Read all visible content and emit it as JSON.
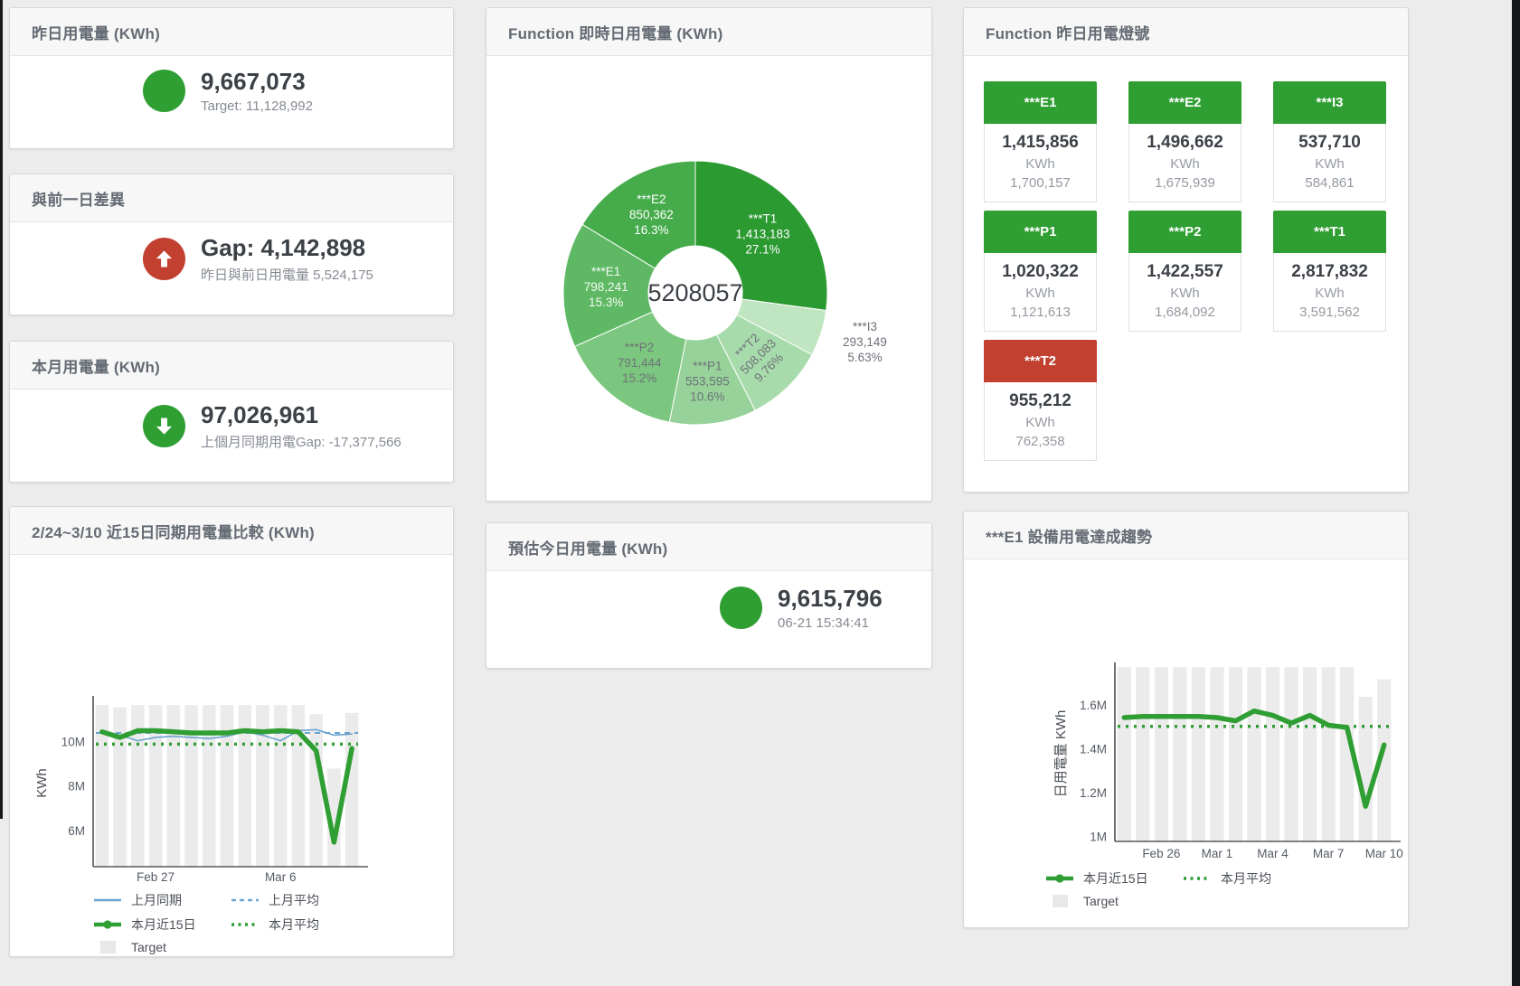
{
  "colors": {
    "green": "#2f9e33",
    "red": "#c1402f",
    "blue": "#6ba3cf",
    "target_bar": "#ebebeb",
    "title": "#656b74",
    "value": "#3c4147",
    "muted": "#868b93",
    "axis": "#565c66"
  },
  "panels": {
    "yesterday": {
      "title": "昨日用電量 (KWh)",
      "value": "9,667,073",
      "subtitle": "Target: 11,128,992",
      "indicator": "green-circle"
    },
    "day_gap": {
      "title": "與前一日差異",
      "value": "Gap: 4,142,898",
      "subtitle": "昨日與前日用電量 5,524,175",
      "indicator": "red-up-arrow"
    },
    "month": {
      "title": "本月用電量 (KWh)",
      "value": "97,026,961",
      "subtitle": "上個月同期用電Gap: -17,377,566",
      "indicator": "green-down-arrow"
    },
    "realtime_donut": {
      "title": "Function 即時日用電量 (KWh)"
    },
    "today_estimate": {
      "title": "預估今日用電量 (KWh)",
      "value": "9,615,796",
      "subtitle": "06-21 15:34:41",
      "indicator": "green-circle"
    },
    "lights": {
      "title": "Function 昨日用電燈號",
      "unit": "KWh",
      "tiles": [
        {
          "name": "***E1",
          "value": "1,415,856",
          "target": "1,700,157",
          "status": "green"
        },
        {
          "name": "***E2",
          "value": "1,496,662",
          "target": "1,675,939",
          "status": "green"
        },
        {
          "name": "***I3",
          "value": "537,710",
          "target": "584,861",
          "status": "green"
        },
        {
          "name": "***P1",
          "value": "1,020,322",
          "target": "1,121,613",
          "status": "green"
        },
        {
          "name": "***P2",
          "value": "1,422,557",
          "target": "1,684,092",
          "status": "green"
        },
        {
          "name": "***T1",
          "value": "2,817,832",
          "target": "3,591,562",
          "status": "green"
        },
        {
          "name": "***T2",
          "value": "955,212",
          "target": "762,358",
          "status": "red"
        }
      ]
    },
    "compare": {
      "title": "2/24~3/10 近15日同期用電量比較 (KWh)"
    },
    "trend": {
      "title": "***E1 設備用電達成趨勢"
    }
  },
  "chart_data": [
    {
      "id": "realtime_donut",
      "type": "pie",
      "title": "Function 即時日用電量 (KWh)",
      "center_label": "5208057",
      "total": 5208057,
      "slices": [
        {
          "name": "***T1",
          "value": 1413183,
          "label_value": "1,413,183",
          "pct": "27.1%",
          "color": "#2b9a31",
          "text": "#ffffff"
        },
        {
          "name": "***I3",
          "value": 293149,
          "label_value": "293,149",
          "pct": "5.63%",
          "color": "#bfe5c1",
          "text": "#6d7278",
          "placement": "outside"
        },
        {
          "name": "***T2",
          "value": 508083,
          "label_value": "508,083",
          "pct": "9.76%",
          "color": "#a8dbab",
          "text": "#6d7278",
          "rotate": true
        },
        {
          "name": "***P1",
          "value": 553595,
          "label_value": "553,595",
          "pct": "10.6%",
          "color": "#97d29a",
          "text": "#6d7278"
        },
        {
          "name": "***P2",
          "value": 791444,
          "label_value": "791,444",
          "pct": "15.2%",
          "color": "#7cc77f",
          "text": "#6d7278"
        },
        {
          "name": "***E1",
          "value": 798241,
          "label_value": "798,241",
          "pct": "15.3%",
          "color": "#5fb964",
          "text": "#f4faf4"
        },
        {
          "name": "***E2",
          "value": 850362,
          "label_value": "850,362",
          "pct": "16.3%",
          "color": "#46ab4b",
          "text": "#ffffff"
        }
      ]
    },
    {
      "id": "compare",
      "type": "line",
      "title": "2/24~3/10 近15日同期用電量比較 (KWh)",
      "ylabel": "KWh",
      "ylim": [
        4400000,
        11900000
      ],
      "yticks": [
        {
          "v": 6000000,
          "label": "6M"
        },
        {
          "v": 8000000,
          "label": "8M"
        },
        {
          "v": 10000000,
          "label": "10M"
        }
      ],
      "xticks": [
        {
          "i": 3,
          "label": "Feb 27"
        },
        {
          "i": 10,
          "label": "Mar 6"
        }
      ],
      "target_bars": {
        "name": "Target",
        "color": "#ebebeb",
        "values": [
          11650000,
          11550000,
          11650000,
          11650000,
          11650000,
          11650000,
          11650000,
          11650000,
          11650000,
          11650000,
          11650000,
          11650000,
          11250000,
          8800000,
          11300000
        ]
      },
      "series": [
        {
          "name": "上月同期",
          "color": "#6ba3cf",
          "width": 1.6,
          "dash": "",
          "values": [
            10500000,
            10300000,
            10050000,
            10200000,
            10250000,
            10200000,
            10150000,
            10250000,
            10450000,
            10300000,
            10050000,
            10500000,
            10550000,
            10300000,
            10350000
          ]
        },
        {
          "name": "上月平均",
          "color": "#6ba3cf",
          "width": 2,
          "dash": "6 5",
          "const": 10400000
        },
        {
          "name": "本月平均",
          "color": "#2f9e33",
          "width": 3.5,
          "dash": "3 6",
          "const": 9900000
        },
        {
          "name": "本月近15日",
          "color": "#2f9e33",
          "width": 5.5,
          "dash": "",
          "values": [
            10450000,
            10200000,
            10500000,
            10500000,
            10450000,
            10400000,
            10400000,
            10400000,
            10500000,
            10450000,
            10500000,
            10450000,
            9600000,
            5500000,
            9700000
          ]
        }
      ],
      "legend": [
        [
          {
            "label": "上月同期",
            "marker": "line",
            "color": "#6ba3cf"
          },
          {
            "label": "上月平均",
            "marker": "dash",
            "color": "#6ba3cf"
          }
        ],
        [
          {
            "label": "本月近15日",
            "marker": "line-dot",
            "color": "#2f9e33"
          },
          {
            "label": "本月平均",
            "marker": "dots",
            "color": "#2f9e33"
          }
        ],
        [
          {
            "label": "Target",
            "marker": "square",
            "color": "#e8e8e8"
          }
        ]
      ]
    },
    {
      "id": "trend",
      "type": "line",
      "title": "***E1 設備用電達成趨勢",
      "ylabel": "日用電量 KWh",
      "ylim": [
        980000,
        1780000
      ],
      "yticks": [
        {
          "v": 1000000,
          "label": "1M"
        },
        {
          "v": 1200000,
          "label": "1.2M"
        },
        {
          "v": 1400000,
          "label": "1.4M"
        },
        {
          "v": 1600000,
          "label": "1.6M"
        }
      ],
      "xticks": [
        {
          "i": 2,
          "label": "Feb 26"
        },
        {
          "i": 5,
          "label": "Mar 1"
        },
        {
          "i": 8,
          "label": "Mar 4"
        },
        {
          "i": 11,
          "label": "Mar 7"
        },
        {
          "i": 14,
          "label": "Mar 10"
        }
      ],
      "target_bars": {
        "name": "Target",
        "color": "#ebebeb",
        "values": [
          1775000,
          1775000,
          1775000,
          1775000,
          1775000,
          1775000,
          1775000,
          1775000,
          1775000,
          1775000,
          1775000,
          1775000,
          1775000,
          1640000,
          1720000
        ]
      },
      "series": [
        {
          "name": "本月平均",
          "color": "#2f9e33",
          "width": 3.5,
          "dash": "3 6",
          "const": 1505000
        },
        {
          "name": "本月近15日",
          "color": "#2f9e33",
          "width": 5.5,
          "dash": "",
          "values": [
            1545000,
            1550000,
            1550000,
            1550000,
            1550000,
            1545000,
            1530000,
            1575000,
            1555000,
            1520000,
            1555000,
            1510000,
            1500000,
            1140000,
            1420000
          ]
        }
      ],
      "legend": [
        [
          {
            "label": "本月近15日",
            "marker": "line-dot",
            "color": "#2f9e33"
          },
          {
            "label": "本月平均",
            "marker": "dots",
            "color": "#2f9e33"
          }
        ],
        [
          {
            "label": "Target",
            "marker": "square",
            "color": "#e8e8e8"
          }
        ]
      ]
    }
  ]
}
